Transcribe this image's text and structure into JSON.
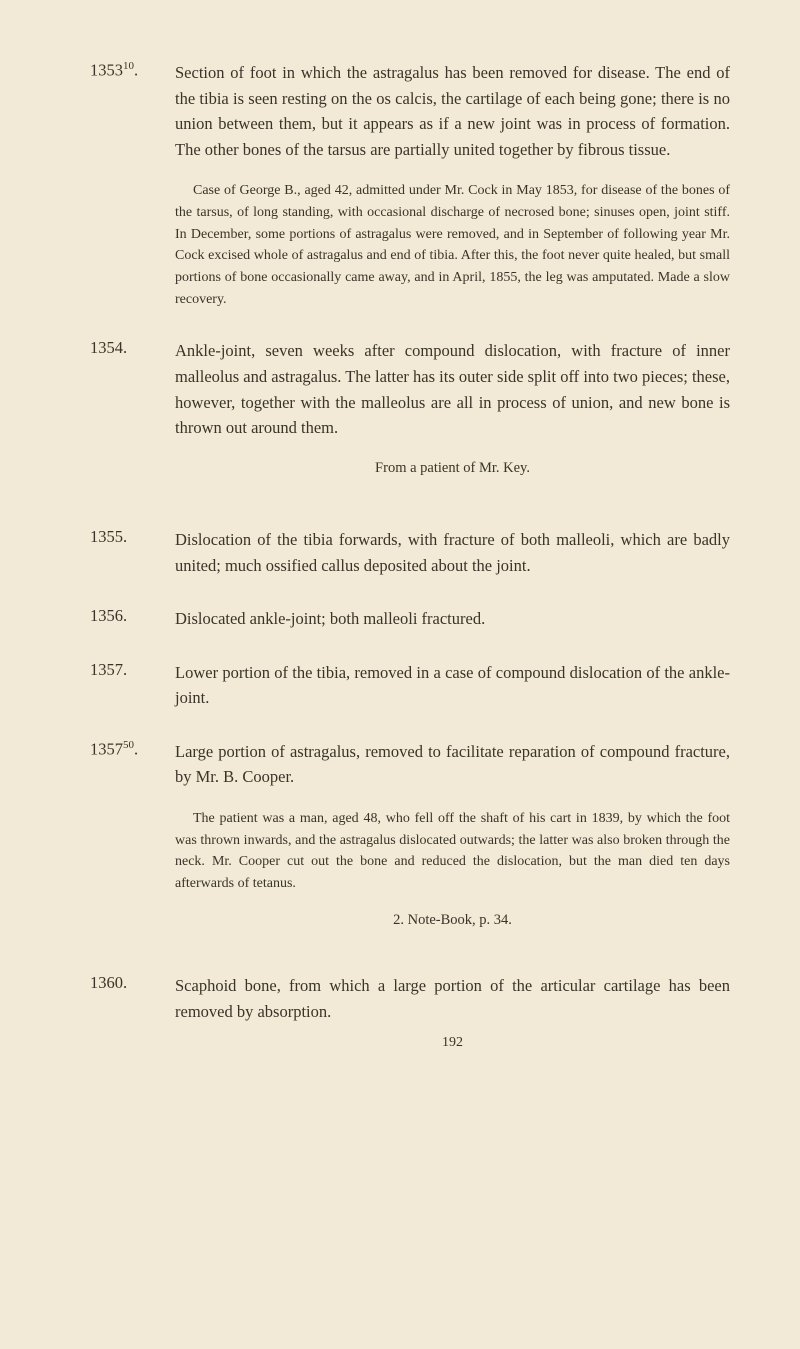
{
  "entries": [
    {
      "number": "1353",
      "superscript": "10",
      "text": "Section of foot in which the astragalus has been removed for disease. The end of the tibia is seen resting on the os calcis, the cartilage of each being gone; there is no union between them, but it appears as if a new joint was in process of formation. The other bones of the tarsus are partially united together by fibrous tissue.",
      "caseNote": "Case of George B., aged 42, admitted under Mr. Cock in May 1853, for disease of the bones of the tarsus, of long standing, with occasional discharge of necrosed bone; sinuses open, joint stiff. In December, some portions of astragalus were removed, and in September of following year Mr. Cock excised whole of astragalus and end of tibia. After this, the foot never quite healed, but small portions of bone occasionally came away, and in April, 1855, the leg was amputated. Made a slow recovery."
    },
    {
      "number": "1354.",
      "text": "Ankle-joint, seven weeks after compound dislocation, with fracture of inner malleolus and astragalus. The latter has its outer side split off into two pieces; these, however, together with the malleolus are all in process of union, and new bone is thrown out around them.",
      "attribution": "From a patient of Mr. Key."
    },
    {
      "number": "1355.",
      "text": "Dislocation of the tibia forwards, with fracture of both malleoli, which are badly united; much ossified callus deposited about the joint."
    },
    {
      "number": "1356.",
      "text": "Dislocated ankle-joint; both malleoli fractured."
    },
    {
      "number": "1357.",
      "text": "Lower portion of the tibia, removed in a case of compound dislocation of the ankle-joint."
    },
    {
      "number": "1357",
      "superscript": "50",
      "text": "Large portion of astragalus, removed to facilitate reparation of compound fracture, by Mr. B. Cooper.",
      "caseNote": "The patient was a man, aged 48, who fell off the shaft of his cart in 1839, by which the foot was thrown inwards, and the astragalus dislocated outwards; the latter was also broken through the neck. Mr. Cooper cut out the bone and reduced the dislocation, but the man died ten days afterwards of tetanus.",
      "subNote": "2. Note-Book, p. 34."
    },
    {
      "number": "1360.",
      "text": "Scaphoid bone, from which a large portion of the articular cartilage has been removed by absorption."
    }
  ],
  "pageNumber": "192"
}
